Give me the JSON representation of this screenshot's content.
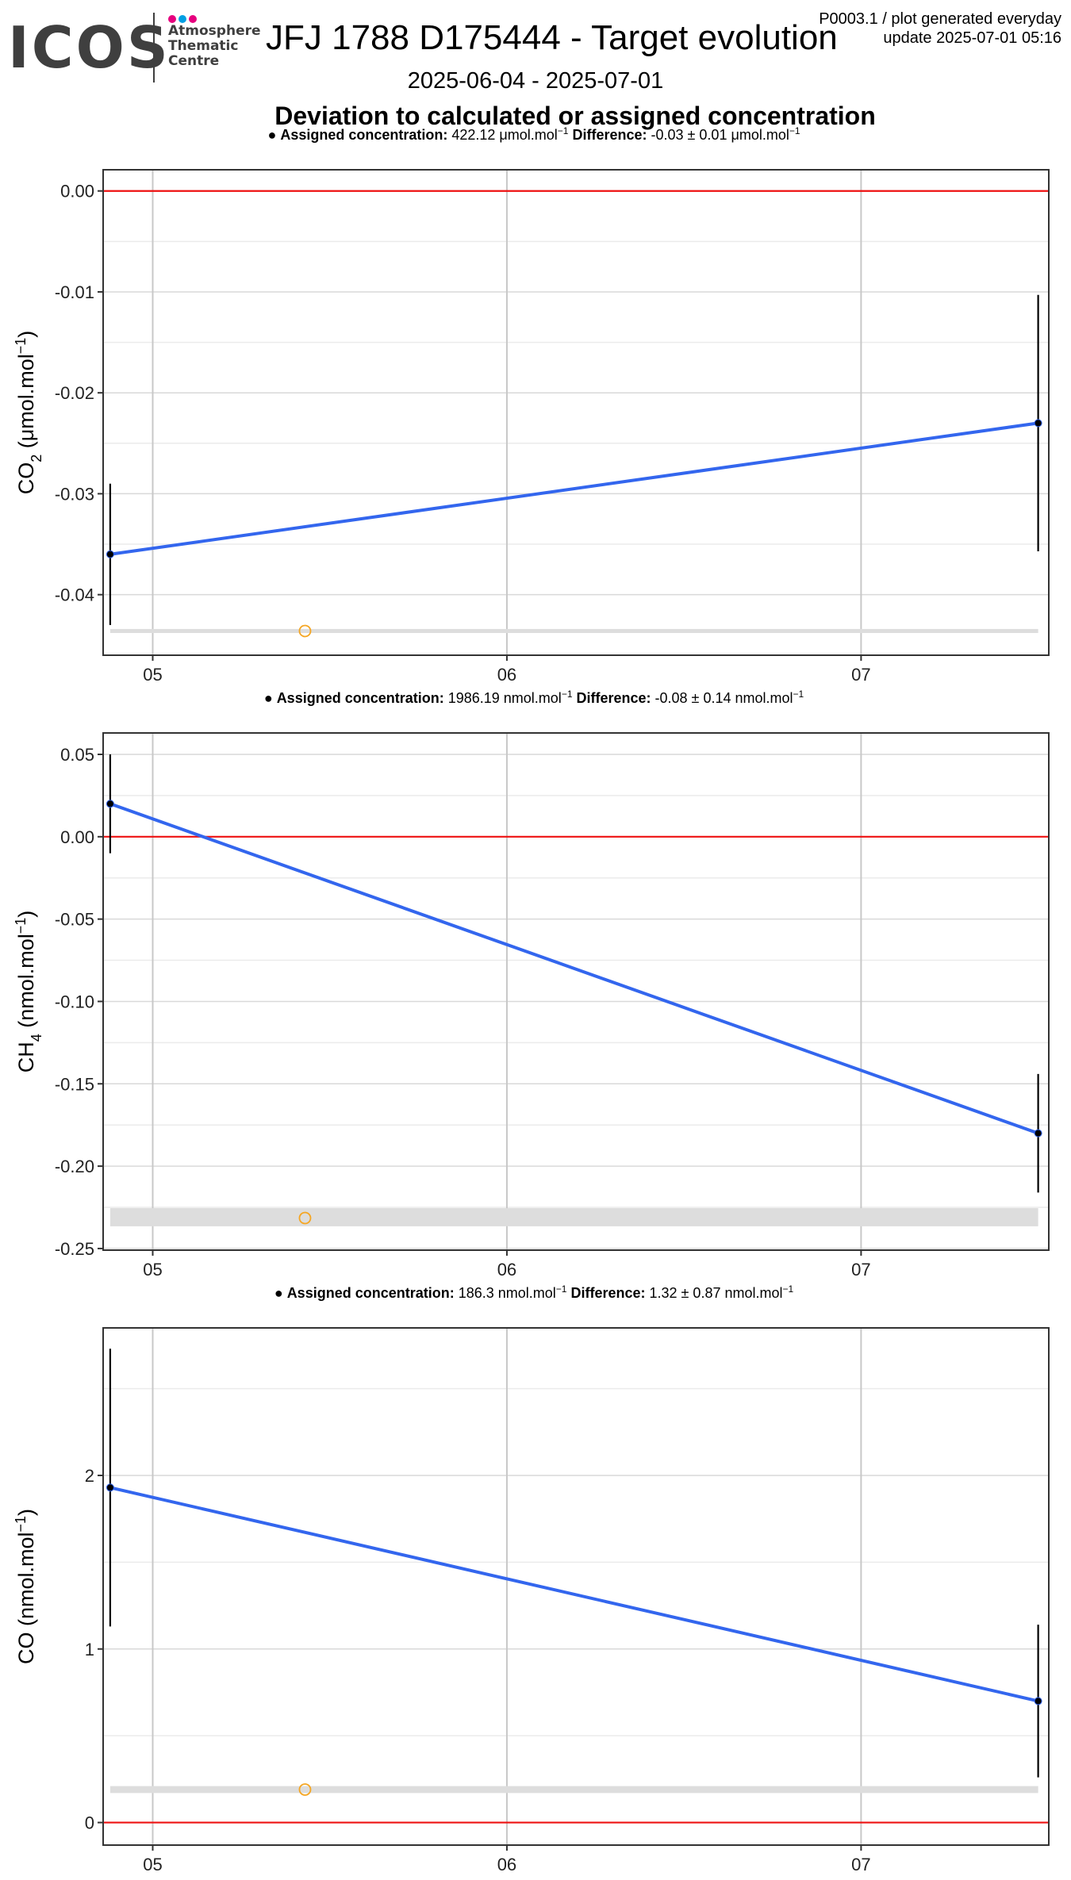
{
  "header": {
    "logo_text": "ICOS",
    "logo_lines": [
      "Atmosphere",
      "Thematic",
      "Centre"
    ],
    "logo_colors": [
      "#e6007e",
      "#009fe3",
      "#e6007e"
    ],
    "title": "JFJ 1788 D175444 - Target evolution",
    "subtitle": "2025-06-04 - 2025-07-01",
    "code_line": "P0003.1 / plot generated everyday",
    "update_line": "update  2025-07-01 05:16",
    "main_title": "Deviation to calculated or assigned concentration"
  },
  "colors": {
    "line": "#3366ee",
    "zero": "#ee1111",
    "band": "#dddddd",
    "marker": "#f5a623"
  },
  "chart_data": [
    {
      "type": "line",
      "species_label": "CO",
      "species_sub": "2",
      "unit_label": "μmol.mol",
      "caption": {
        "label": "Assigned concentration:",
        "value": "422.12 μmol.mol",
        "diff_label": "Difference:",
        "diff_value": "-0.03 ± 0.01 μmol.mol"
      },
      "x": [
        4.88,
        7.5
      ],
      "y": [
        -0.036,
        -0.023
      ],
      "errors": [
        0.007,
        0.0127
      ],
      "xlim": [
        4.86,
        7.53
      ],
      "ylim": [
        -0.046,
        0.0021
      ],
      "xticks": [
        5,
        6,
        7
      ],
      "xtick_labels": [
        "05",
        "06",
        "07"
      ],
      "yticks": [
        0.0,
        -0.01,
        -0.02,
        -0.03,
        -0.04
      ],
      "ytick_labels": [
        "0.00",
        "-0.01",
        "-0.02",
        "-0.03",
        "-0.04"
      ],
      "band": [
        -0.0438,
        -0.0434
      ],
      "marker_point": [
        5.43,
        -0.0436
      ],
      "zero_line": 0
    },
    {
      "type": "line",
      "species_label": "CH",
      "species_sub": "4",
      "unit_label": "nmol.mol",
      "caption": {
        "label": "Assigned concentration:",
        "value": "1986.19 nmol.mol",
        "diff_label": "Difference:",
        "diff_value": "-0.08 ± 0.14 nmol.mol"
      },
      "x": [
        4.88,
        7.5
      ],
      "y": [
        0.02,
        -0.18
      ],
      "errors": [
        0.03,
        0.036
      ],
      "xlim": [
        4.86,
        7.53
      ],
      "ylim": [
        -0.251,
        0.063
      ],
      "xticks": [
        5,
        6,
        7
      ],
      "xtick_labels": [
        "05",
        "06",
        "07"
      ],
      "yticks": [
        0.05,
        0.0,
        -0.05,
        -0.1,
        -0.15,
        -0.2,
        -0.25
      ],
      "ytick_labels": [
        "0.05",
        "0.00",
        "-0.05",
        "-0.10",
        "-0.15",
        "-0.20",
        "-0.25"
      ],
      "band": [
        -0.2365,
        -0.2255
      ],
      "marker_point": [
        5.43,
        -0.2315
      ],
      "zero_line": 0
    },
    {
      "type": "line",
      "species_label": "CO",
      "species_sub": "",
      "unit_label": "nmol.mol",
      "caption": {
        "label": "Assigned concentration:",
        "value": "186.3 nmol.mol",
        "diff_label": "Difference:",
        "diff_value": "1.32 ± 0.87 nmol.mol"
      },
      "x": [
        4.88,
        7.5
      ],
      "y": [
        1.93,
        0.7
      ],
      "errors": [
        0.8,
        0.44
      ],
      "xlim": [
        4.86,
        7.53
      ],
      "ylim": [
        -0.13,
        2.85
      ],
      "xticks": [
        5,
        6,
        7
      ],
      "xtick_labels": [
        "05",
        "06",
        "07"
      ],
      "yticks": [
        0,
        1,
        2
      ],
      "ytick_labels": [
        "0",
        "1",
        "2"
      ],
      "band": [
        0.17,
        0.21
      ],
      "marker_point": [
        5.43,
        0.19
      ],
      "zero_line": 0
    }
  ]
}
